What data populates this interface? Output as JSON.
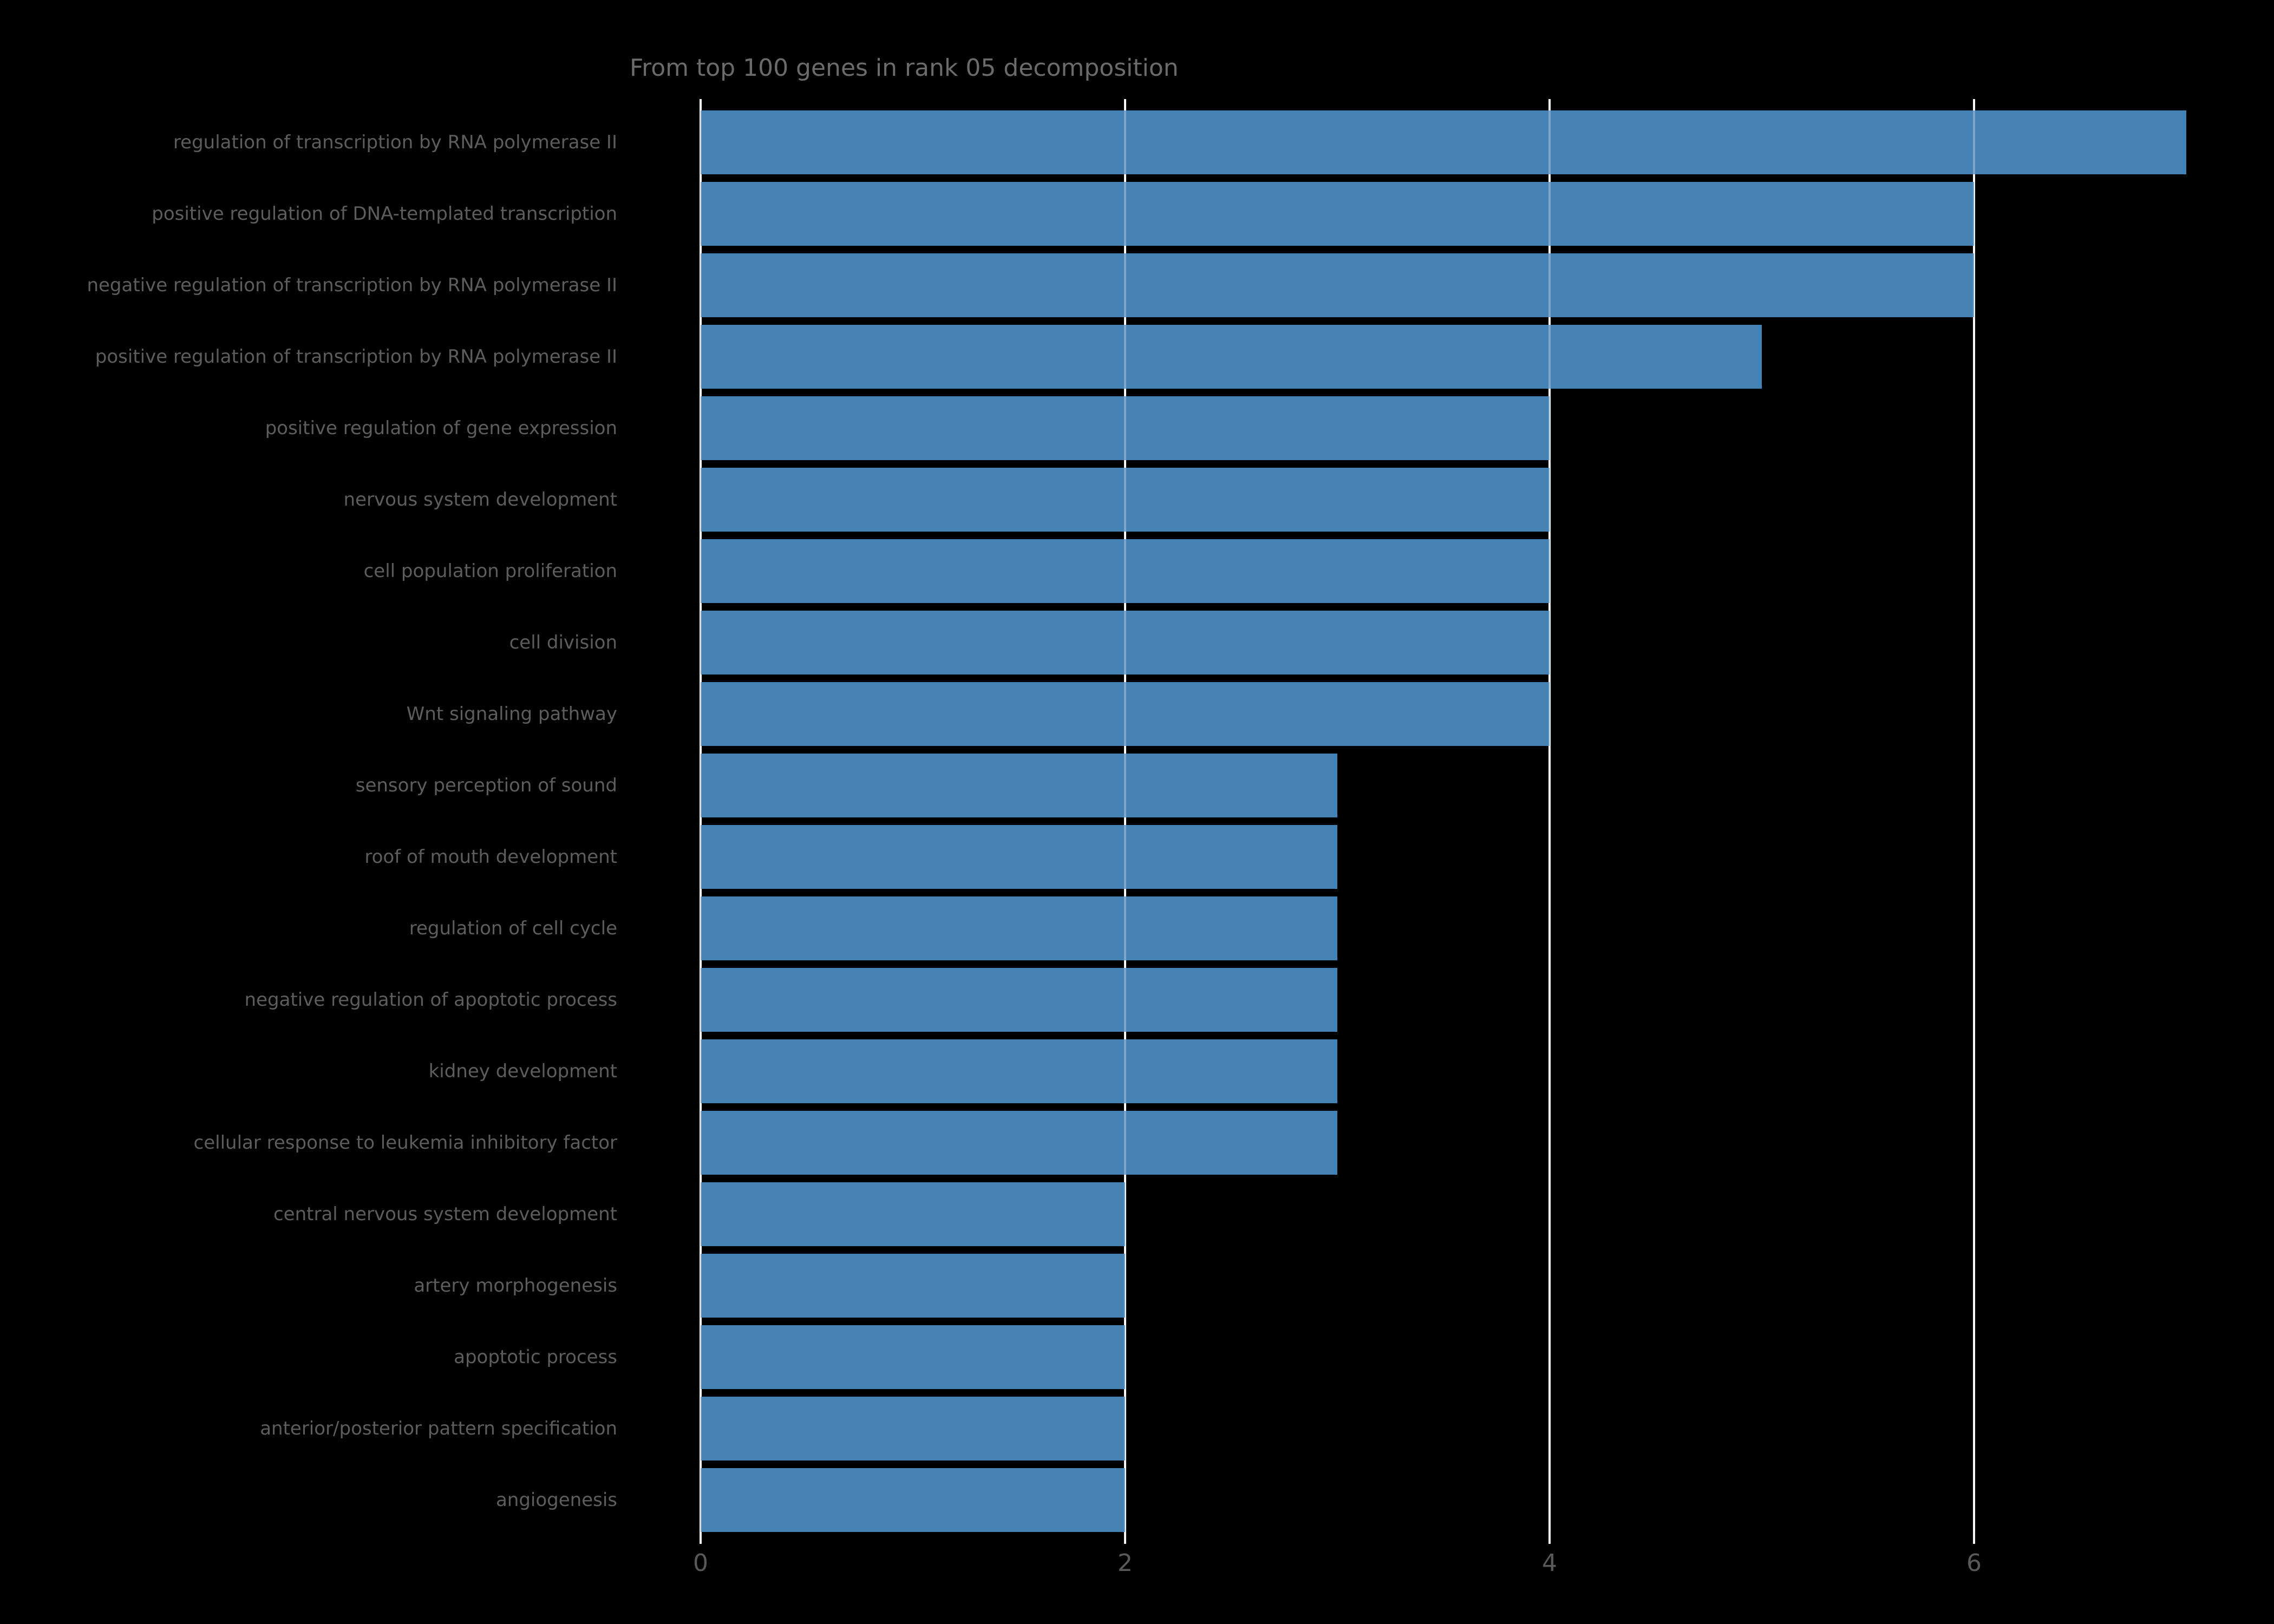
{
  "chart_data": {
    "type": "bar",
    "orientation": "horizontal",
    "title": "From top 100 genes in rank 05 decomposition",
    "categories": [
      "regulation of transcription by RNA polymerase II",
      "positive regulation of DNA-templated transcription",
      "negative regulation of transcription by RNA polymerase II",
      "positive regulation of transcription by RNA polymerase II",
      "positive regulation of gene expression",
      "nervous system development",
      "cell population proliferation",
      "cell division",
      "Wnt signaling pathway",
      "sensory perception of sound",
      "roof of mouth development",
      "regulation of cell cycle",
      "negative regulation of apoptotic process",
      "kidney development",
      "cellular response to leukemia inhibitory factor",
      "central nervous system development",
      "artery morphogenesis",
      "apoptotic process",
      "anterior/posterior pattern specification",
      "angiogenesis"
    ],
    "values": [
      7,
      6,
      6,
      5,
      4,
      4,
      4,
      4,
      4,
      3,
      3,
      3,
      3,
      3,
      3,
      2,
      2,
      2,
      2,
      2
    ],
    "xlabel": "",
    "ylabel": "",
    "xlim": [
      0,
      7.25
    ],
    "xticks": [
      0,
      2,
      4,
      6
    ],
    "grid": true,
    "legend": false,
    "colors": {
      "bar": "#4682b4",
      "background": "#000000",
      "gridline": "#f5f5f5",
      "title_text": "#6b6b6b",
      "category_text": "#5d5d5d",
      "tick_text": "#595959"
    }
  }
}
